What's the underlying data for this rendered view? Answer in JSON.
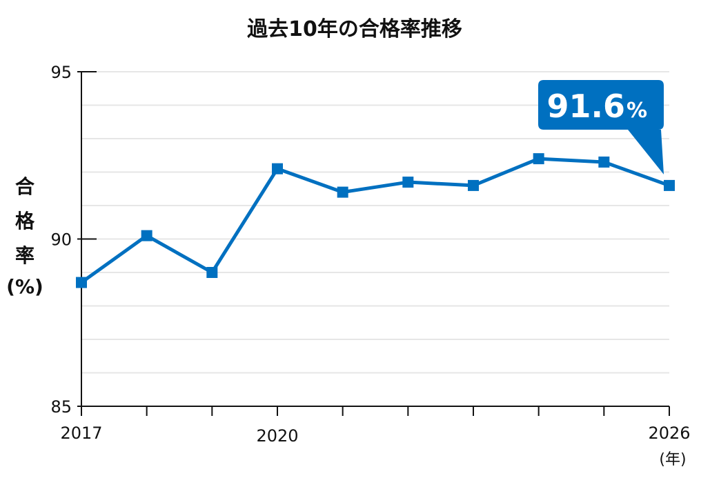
{
  "chart_data": {
    "type": "line",
    "title": "過去10年の合格率推移",
    "ylabel_chars": [
      "合",
      "格",
      "率"
    ],
    "ylabel_unit": "(%)",
    "x_unit": "(年)",
    "x": [
      2017,
      2018,
      2019,
      2020,
      2021,
      2022,
      2023,
      2024,
      2025,
      2026
    ],
    "x_tick_labels": [
      {
        "x": 2017,
        "label": "2017"
      },
      {
        "x": 2020,
        "label": "2020"
      },
      {
        "x": 2026,
        "label": "2026"
      }
    ],
    "series": [
      {
        "values": [
          88.7,
          90.1,
          89.0,
          92.1,
          91.4,
          91.7,
          91.6,
          92.4,
          92.3,
          91.6
        ]
      }
    ],
    "ylim": [
      85,
      95
    ],
    "y_ticks": [
      85,
      90,
      95
    ],
    "y_minor_step": 1,
    "grid": true,
    "callout": {
      "x": 2026,
      "value": "91.6",
      "unit": "%"
    },
    "colors": {
      "line": "#0070C0",
      "callout_bg": "#0070C0",
      "grid": "#e6e6e6",
      "axis": "#111111"
    }
  }
}
